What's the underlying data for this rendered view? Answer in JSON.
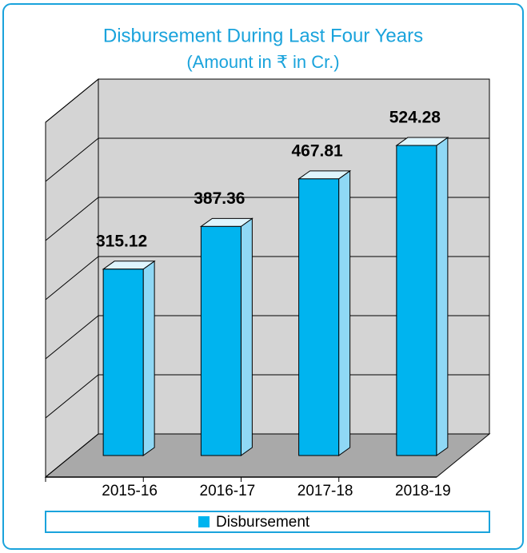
{
  "chart_data": {
    "type": "bar",
    "title": "Disbursement During Last Four Years",
    "subtitle": "(Amount in ₹ in Cr.)",
    "categories": [
      "2015-16",
      "2016-17",
      "2017-18",
      "2018-19"
    ],
    "series": [
      {
        "name": "Disbursement",
        "color": "#00b4ef",
        "values": [
          315.12,
          387.36,
          467.81,
          524.28
        ]
      }
    ],
    "ylim": [
      0,
      600
    ],
    "yticks": [
      0,
      100,
      200,
      300,
      400,
      500,
      600
    ],
    "grid": true
  }
}
